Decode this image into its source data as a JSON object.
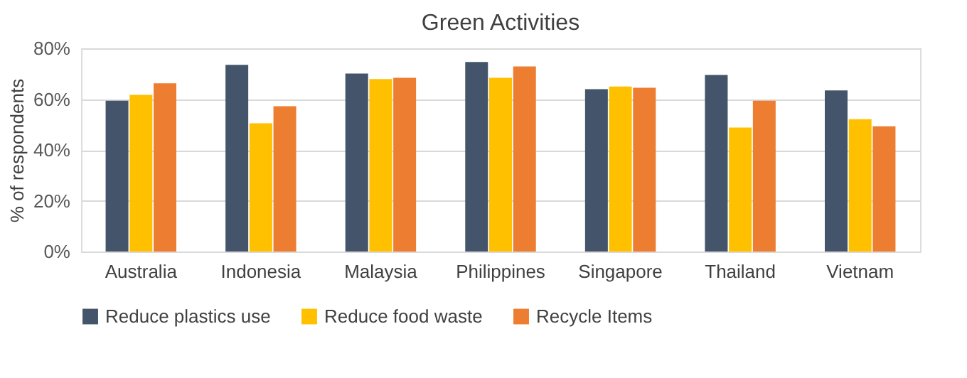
{
  "chart_data": {
    "type": "bar",
    "title": "Green Activities",
    "ylabel": "% of respondents",
    "categories": [
      "Australia",
      "Indonesia",
      "Malaysia",
      "Philippines",
      "Singapore",
      "Thailand",
      "Vietnam"
    ],
    "series": [
      {
        "name": "Reduce plastics use",
        "color": "#44546a",
        "values": [
          59.4,
          73.5,
          70.1,
          74.6,
          63.9,
          69.5,
          63.4
        ]
      },
      {
        "name": "Reduce food waste",
        "color": "#ffc000",
        "values": [
          61.7,
          50.5,
          67.9,
          68.4,
          65.0,
          48.8,
          52.1
        ]
      },
      {
        "name": "Recycle Items",
        "color": "#ed7d31",
        "values": [
          66.2,
          57.2,
          68.4,
          72.9,
          64.5,
          59.4,
          49.3
        ]
      }
    ],
    "ylim": [
      0,
      80
    ],
    "yticks": [
      {
        "value": 0,
        "label": "0%"
      },
      {
        "value": 20,
        "label": "20%"
      },
      {
        "value": 40,
        "label": "40%"
      },
      {
        "value": 60,
        "label": "60%"
      },
      {
        "value": 80,
        "label": "80%"
      }
    ],
    "grid": "y",
    "legend": "bottom"
  }
}
